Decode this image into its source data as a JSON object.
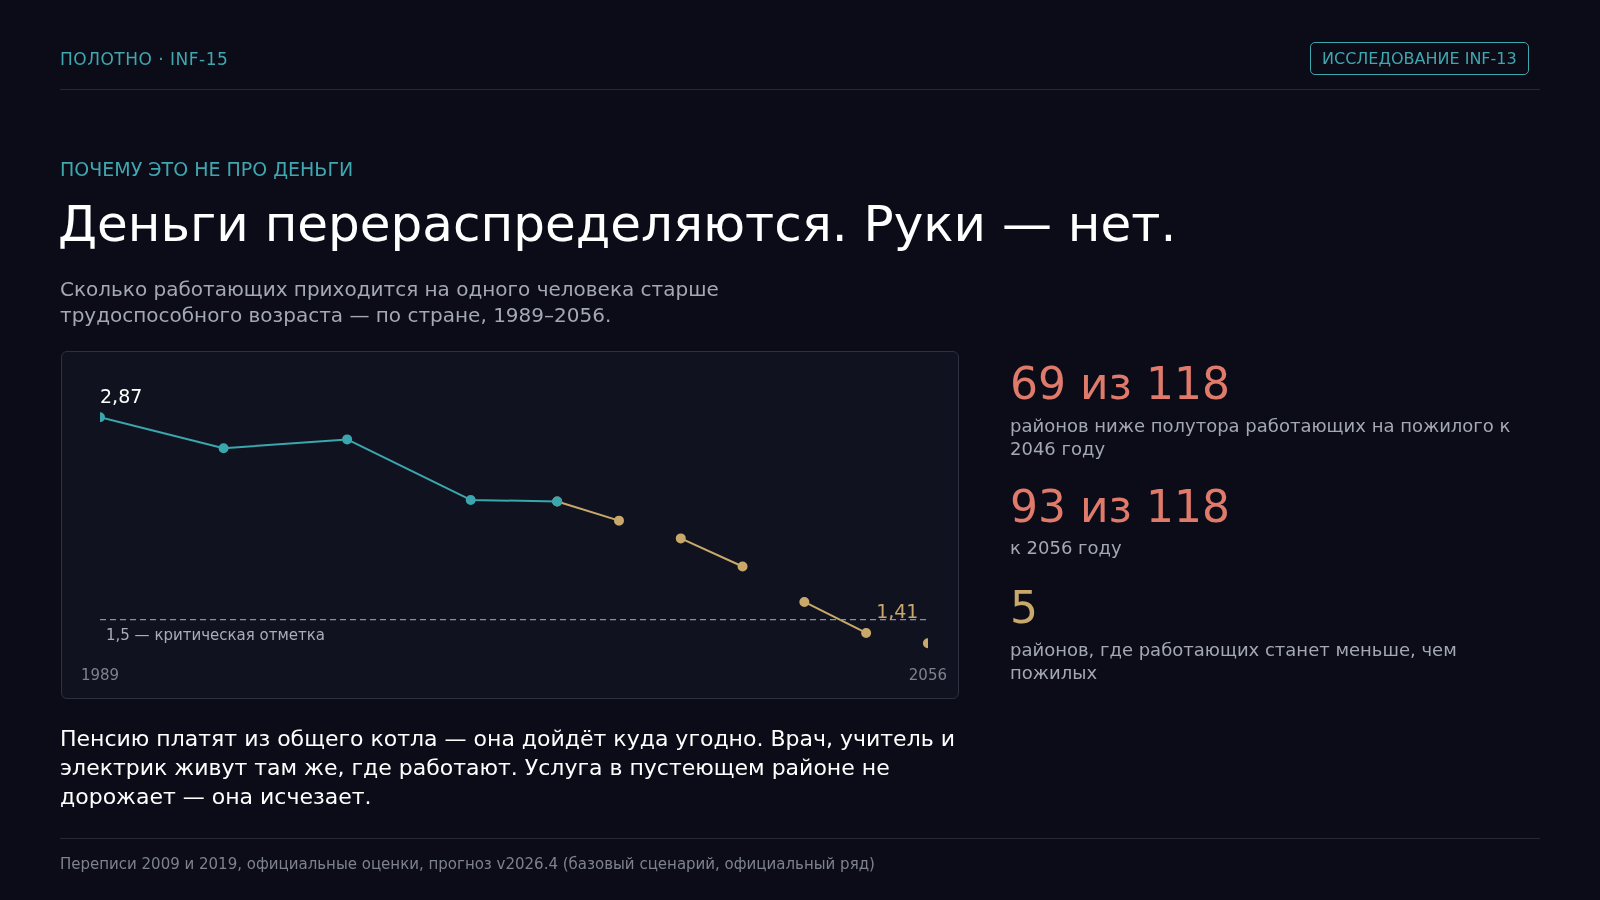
{
  "chart_data": {
    "type": "line",
    "title": "Деньги перераспределяются. Руки — нет.",
    "subtitle": "Сколько работающих приходится на одного человека старше трудоспособного возраста — по стране, 1989–2056.",
    "xlim": [
      1989,
      2056
    ],
    "xticks": [
      1989,
      2056
    ],
    "tick_labels": "x",
    "grid": false,
    "legend": false,
    "marker": "circle",
    "line_style": "solid",
    "series": [
      {
        "color": "#3aa6ad",
        "x": [
          1989,
          1999,
          2009,
          2019,
          2026
        ],
        "values": [
          2.87,
          2.66,
          2.72,
          2.31,
          2.3
        ],
        "value_labels": [
          "2,87",
          null,
          null,
          null,
          null
        ]
      },
      {
        "color": "#c9a96b",
        "x": [
          2026,
          2031
        ],
        "values": [
          2.3,
          2.17
        ]
      },
      {
        "color": "#c9a96b",
        "x": [
          2036,
          2041
        ],
        "values": [
          2.05,
          1.86
        ]
      },
      {
        "color": "#c9a96b",
        "x": [
          2046,
          2051
        ],
        "values": [
          1.62,
          1.41
        ],
        "value_labels": [
          null,
          "1,41"
        ]
      },
      {
        "color": "#c9a96b",
        "x": [
          2056
        ],
        "values": [
          1.34
        ]
      }
    ],
    "ref_lines": [
      {
        "axis": "y",
        "value": 1.5,
        "label": "1,5 — критическая отметка",
        "color": "#8a8f9c",
        "line_style": "dashed"
      }
    ],
    "annotations": [
      "ПОЛОТНО · INF-15",
      "ИССЛЕДОВАНИЕ INF-13",
      "ПОЧЕМУ ЭТО НЕ ПРО ДЕНЬГИ",
      "69 из 118",
      "районов ниже полутора работающих на пожилого к 2046 году",
      "93 из 118",
      "к 2056 году",
      "5",
      "районов, где работающих станет меньше, чем пожилых",
      "Пенсию платят из общего котла — она дойдёт куда угодно. Врач, учитель и электрик живут там же, где работают. Услуга в пустеющем районе не дорожает — она исчезает.",
      "Переписи 2009 и 2019, официальные оценки, прогноз v2026.4 (базовый сценарий, официальный ряд)"
    ]
  }
}
